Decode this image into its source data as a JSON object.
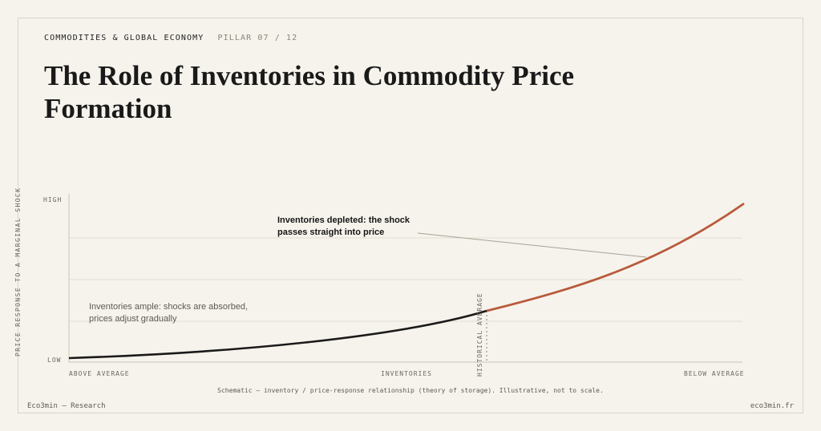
{
  "header": {
    "category": "COMMODITIES & GLOBAL ECONOMY",
    "pillar": "PILLAR 07 / 12",
    "title": "The Role of Inventories in Commodity Price Formation"
  },
  "chart": {
    "y_axis_label": "PRICE RESPONSE TO A MARGINAL SHOCK",
    "y_ticks": {
      "high": "HIGH",
      "low": "LOW"
    },
    "x_ticks": {
      "left": "ABOVE AVERAGE",
      "center": "INVENTORIES",
      "right": "BELOW AVERAGE"
    },
    "marker_label": "HISTORICAL AVERAGE",
    "annotations": {
      "ample_line1": "Inventories ample: shocks are absorbed,",
      "ample_line2": "prices adjust gradually",
      "depleted_line1": "Inventories depleted: the shock",
      "depleted_line2": "passes straight into price"
    },
    "caption": "Schematic — inventory / price-response relationship (theory of storage). Illustrative, not to scale.",
    "colors": {
      "ample_curve": "#1a1a1a",
      "depleted_curve": "#b85a3c",
      "grid": "#e3ded3",
      "axis": "#c9c3b7"
    }
  },
  "footer": {
    "left": "Eco3min — Research",
    "right": "eco3min.fr"
  }
}
